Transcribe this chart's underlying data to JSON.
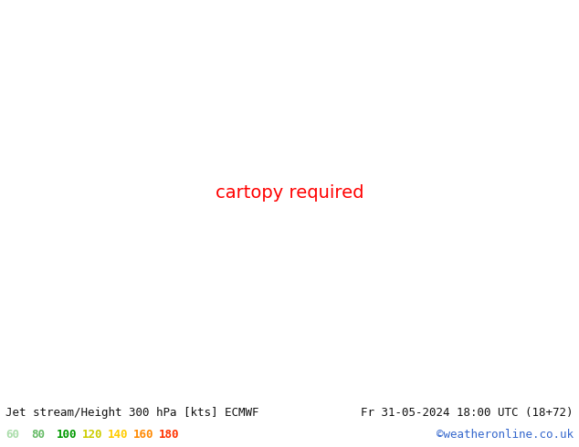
{
  "title_left": "Jet stream/Height 300 hPa [kts] ECMWF",
  "title_right": "Fr 31-05-2024 18:00 UTC (18+72)",
  "credit": "©weatheronline.co.uk",
  "legend_values": [
    60,
    80,
    100,
    120,
    140,
    160,
    180
  ],
  "legend_colors": [
    "#aaddaa",
    "#66bb66",
    "#009900",
    "#cccc00",
    "#ffcc00",
    "#ff8800",
    "#ff3300"
  ],
  "figsize": [
    6.34,
    4.9
  ],
  "dpi": 100,
  "font_size_title": 9,
  "font_size_legend": 9,
  "font_size_credit": 9,
  "map_extent": [
    85,
    200,
    -15,
    62
  ],
  "land_color": "#d8d8d8",
  "ocean_color": "#f0f0f0",
  "jet_colors": [
    "#b8e8b0",
    "#77cc66",
    "#009900",
    "#cccc00",
    "#ffcc00",
    "#ff8800",
    "#ff3300"
  ],
  "jet_bounds": [
    60,
    80,
    100,
    120,
    140,
    160,
    180,
    220
  ],
  "contour_color": "black",
  "bottom_bar_color": "#e0e0e0"
}
